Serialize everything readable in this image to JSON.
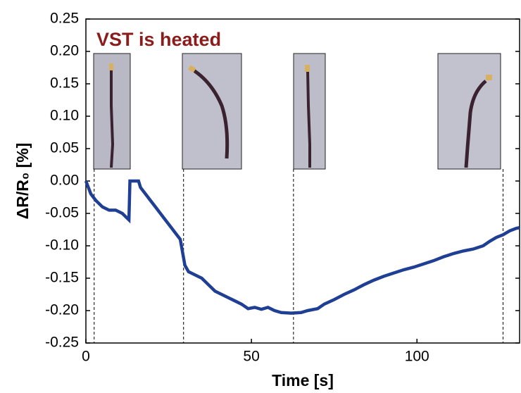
{
  "chart_data": {
    "type": "line",
    "annotation": "VST is heated",
    "x_label": "Time [s]",
    "y_label": "ΔR/R₀ [%]",
    "xlim": [
      0,
      131
    ],
    "ylim": [
      -0.25,
      0.25
    ],
    "xticks": [
      0,
      50,
      100
    ],
    "yticks": [
      {
        "value": 0.25,
        "label": "0.25"
      },
      {
        "value": 0.2,
        "label": "0.20"
      },
      {
        "value": 0.15,
        "label": "0.15"
      },
      {
        "value": 0.1,
        "label": "0.10"
      },
      {
        "value": 0.05,
        "label": "0.05"
      },
      {
        "value": 0,
        "label": "0.00"
      },
      {
        "value": -0.05,
        "label": "-0.05"
      },
      {
        "value": -0.1,
        "label": "-0.10"
      },
      {
        "value": -0.15,
        "label": "-0.15"
      },
      {
        "value": -0.2,
        "label": "-0.20"
      },
      {
        "value": -0.25,
        "label": "-0.25"
      }
    ],
    "markers": [
      2.5,
      29.5,
      62.7,
      126
    ],
    "color": "#1f3f94",
    "x": [
      0,
      1.5,
      3,
      5,
      7,
      9,
      11,
      13,
      13.3,
      15.9,
      16.5,
      18,
      19.5,
      21,
      22.5,
      24,
      25.5,
      27,
      28.5,
      29.9,
      31,
      33,
      35,
      37,
      39,
      41,
      43,
      45,
      47,
      49,
      51,
      53,
      55,
      57,
      59,
      62,
      65,
      67,
      70,
      72,
      75,
      78,
      81,
      84,
      87,
      90,
      93,
      96,
      99,
      102,
      105,
      108,
      111,
      114,
      117,
      120,
      122,
      124,
      126,
      128,
      130,
      131
    ],
    "values": [
      0,
      -0.02,
      -0.03,
      -0.04,
      -0.045,
      -0.045,
      -0.05,
      -0.06,
      0,
      0,
      -0.01,
      -0.02,
      -0.03,
      -0.04,
      -0.05,
      -0.06,
      -0.07,
      -0.08,
      -0.09,
      -0.13,
      -0.14,
      -0.145,
      -0.15,
      -0.16,
      -0.17,
      -0.175,
      -0.18,
      -0.185,
      -0.19,
      -0.197,
      -0.195,
      -0.198,
      -0.195,
      -0.2,
      -0.203,
      -0.204,
      -0.203,
      -0.2,
      -0.197,
      -0.19,
      -0.183,
      -0.175,
      -0.168,
      -0.16,
      -0.153,
      -0.147,
      -0.142,
      -0.137,
      -0.133,
      -0.128,
      -0.123,
      -0.117,
      -0.112,
      -0.108,
      -0.105,
      -0.1,
      -0.093,
      -0.087,
      -0.083,
      -0.077,
      -0.073,
      -0.072
    ]
  }
}
